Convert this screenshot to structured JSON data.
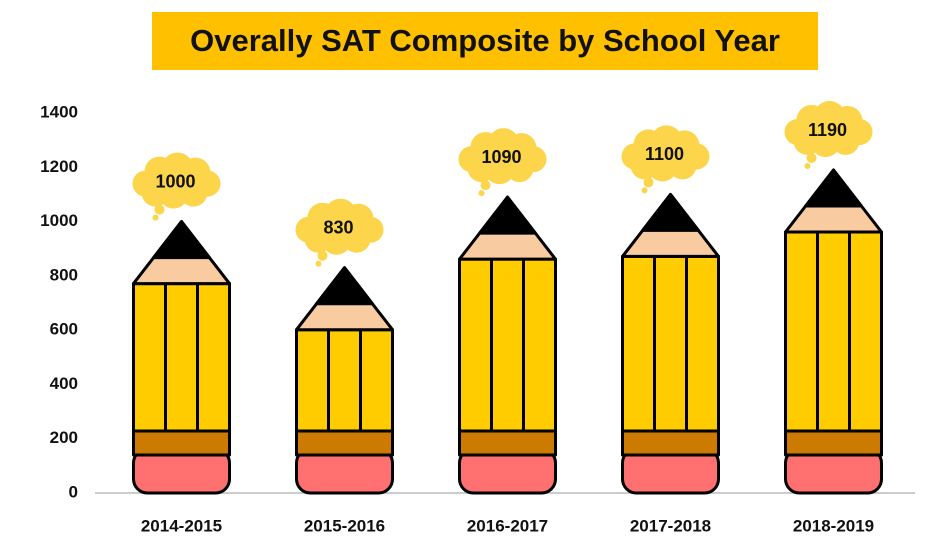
{
  "chart_data": {
    "type": "bar",
    "title": "Overally SAT Composite by School Year",
    "categories": [
      "2014-2015",
      "2015-2016",
      "2016-2017",
      "2017-2018",
      "2018-2019"
    ],
    "values": [
      1000,
      830,
      1090,
      1100,
      1190
    ],
    "color": "#ffcc00",
    "ylim": [
      0,
      1400
    ],
    "yticks": [
      0,
      200,
      400,
      600,
      800,
      1000,
      1200,
      1400
    ],
    "grid": false
  }
}
